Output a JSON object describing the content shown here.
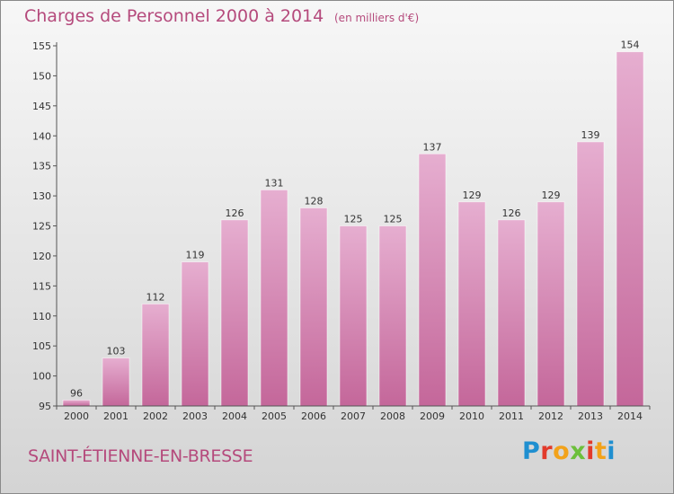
{
  "title": "Charges de Personnel 2000 à 2014",
  "subtitle": "(en milliers d'€)",
  "commune": "SAINT-ÉTIENNE-EN-BRESSE",
  "logo": "Proxiti",
  "colors": {
    "bar": "#c4679a",
    "bar_light": "#e6aed0",
    "title": "#b54a7c",
    "axis": "#555555"
  },
  "chart_data": {
    "type": "bar",
    "title": "Charges de Personnel 2000 à 2014",
    "subtitle": "(en milliers d'€)",
    "xlabel": "",
    "ylabel": "",
    "categories": [
      "2000",
      "2001",
      "2002",
      "2003",
      "2004",
      "2005",
      "2006",
      "2007",
      "2008",
      "2009",
      "2010",
      "2011",
      "2012",
      "2013",
      "2014"
    ],
    "values": [
      96,
      103,
      112,
      119,
      126,
      131,
      128,
      125,
      125,
      137,
      129,
      126,
      129,
      139,
      154
    ],
    "ylim": [
      95,
      155
    ],
    "yticks": [
      95,
      100,
      105,
      110,
      115,
      120,
      125,
      130,
      135,
      140,
      145,
      150,
      155
    ],
    "grid": false,
    "legend": "none"
  }
}
